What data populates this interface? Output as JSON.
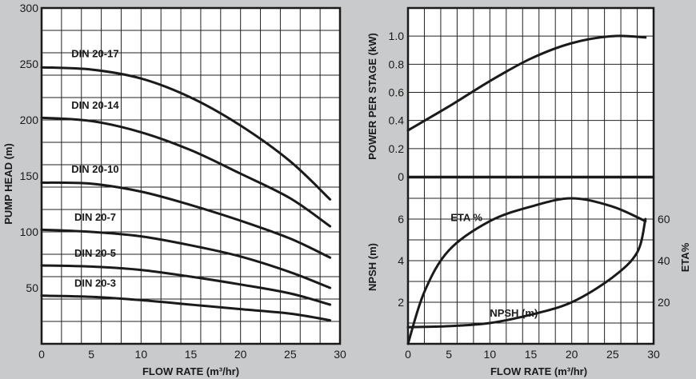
{
  "colors": {
    "background": "#c9cacb",
    "plot_bg": "#ffffff",
    "ink": "#1a1a1a",
    "grid": "#222222"
  },
  "chart_data": [
    {
      "id": "pump-head",
      "type": "line",
      "xlabel": "FLOW RATE (m³/hr)",
      "ylabel": "PUMP HEAD (m)",
      "xlim": [
        0,
        30
      ],
      "ylim": [
        0,
        300
      ],
      "xticks": [
        "0",
        "5",
        "10",
        "15",
        "20",
        "25",
        "30"
      ],
      "yticks": [
        "50",
        "100",
        "150",
        "200",
        "250",
        "300"
      ],
      "grid": true,
      "series": [
        {
          "name": "DIN 20-17",
          "x": [
            0,
            5,
            10,
            15,
            20,
            25,
            29
          ],
          "values": [
            247,
            245,
            237,
            220,
            195,
            163,
            129
          ]
        },
        {
          "name": "DIN 20-14",
          "x": [
            0,
            5,
            10,
            15,
            20,
            25,
            29
          ],
          "values": [
            202,
            199,
            189,
            173,
            152,
            130,
            105
          ]
        },
        {
          "name": "DIN 20-10",
          "x": [
            0,
            5,
            10,
            15,
            20,
            25,
            29
          ],
          "values": [
            144,
            143,
            136,
            124,
            110,
            94,
            77
          ]
        },
        {
          "name": "DIN 20-7",
          "x": [
            0,
            5,
            10,
            15,
            20,
            25,
            29
          ],
          "values": [
            102,
            100,
            96,
            88,
            78,
            64,
            50
          ]
        },
        {
          "name": "DIN 20-5",
          "x": [
            0,
            5,
            10,
            15,
            20,
            25,
            29
          ],
          "values": [
            70,
            69,
            66,
            60,
            53,
            45,
            35
          ]
        },
        {
          "name": "DIN 20-3",
          "x": [
            0,
            5,
            10,
            15,
            20,
            25,
            29
          ],
          "values": [
            43,
            42,
            39,
            35,
            31,
            27,
            21
          ]
        }
      ]
    },
    {
      "id": "power",
      "type": "line",
      "ylabel": "POWER PER STAGE (kW)",
      "xlim": [
        0,
        30
      ],
      "ylim": [
        0,
        1.2
      ],
      "yticks": [
        "0",
        "0.2",
        "0.4",
        "0.6",
        "0.8",
        "1.0"
      ],
      "grid": true,
      "series": [
        {
          "name": "Power",
          "x": [
            0,
            5,
            10,
            15,
            20,
            25,
            29
          ],
          "values": [
            0.33,
            0.5,
            0.68,
            0.84,
            0.95,
            1.0,
            0.99
          ]
        }
      ]
    },
    {
      "id": "npsh-eta",
      "type": "line",
      "xlabel": "FLOW RATE (m³/hr)",
      "ylabel": "NPSH (m)",
      "y2label": "ETA%",
      "xlim": [
        0,
        30
      ],
      "ylim": [
        0,
        8
      ],
      "y2lim": [
        0,
        80
      ],
      "xticks": [
        "0",
        "5",
        "10",
        "15",
        "20",
        "25",
        "30"
      ],
      "yticks": [
        "2",
        "4",
        "6"
      ],
      "y2ticks": [
        "20",
        "40",
        "60"
      ],
      "grid": true,
      "series": [
        {
          "name": "ETA %",
          "axis": "right",
          "x": [
            0,
            2,
            5,
            10,
            15,
            20,
            25,
            29
          ],
          "values": [
            0,
            25,
            45,
            59,
            66,
            70,
            66,
            59
          ]
        },
        {
          "name": "NPSH (m)",
          "axis": "left",
          "x": [
            0,
            5,
            10,
            15,
            20,
            25,
            28,
            29
          ],
          "values": [
            0.8,
            0.85,
            1.0,
            1.4,
            2.0,
            3.2,
            4.4,
            6.0
          ]
        }
      ]
    }
  ]
}
